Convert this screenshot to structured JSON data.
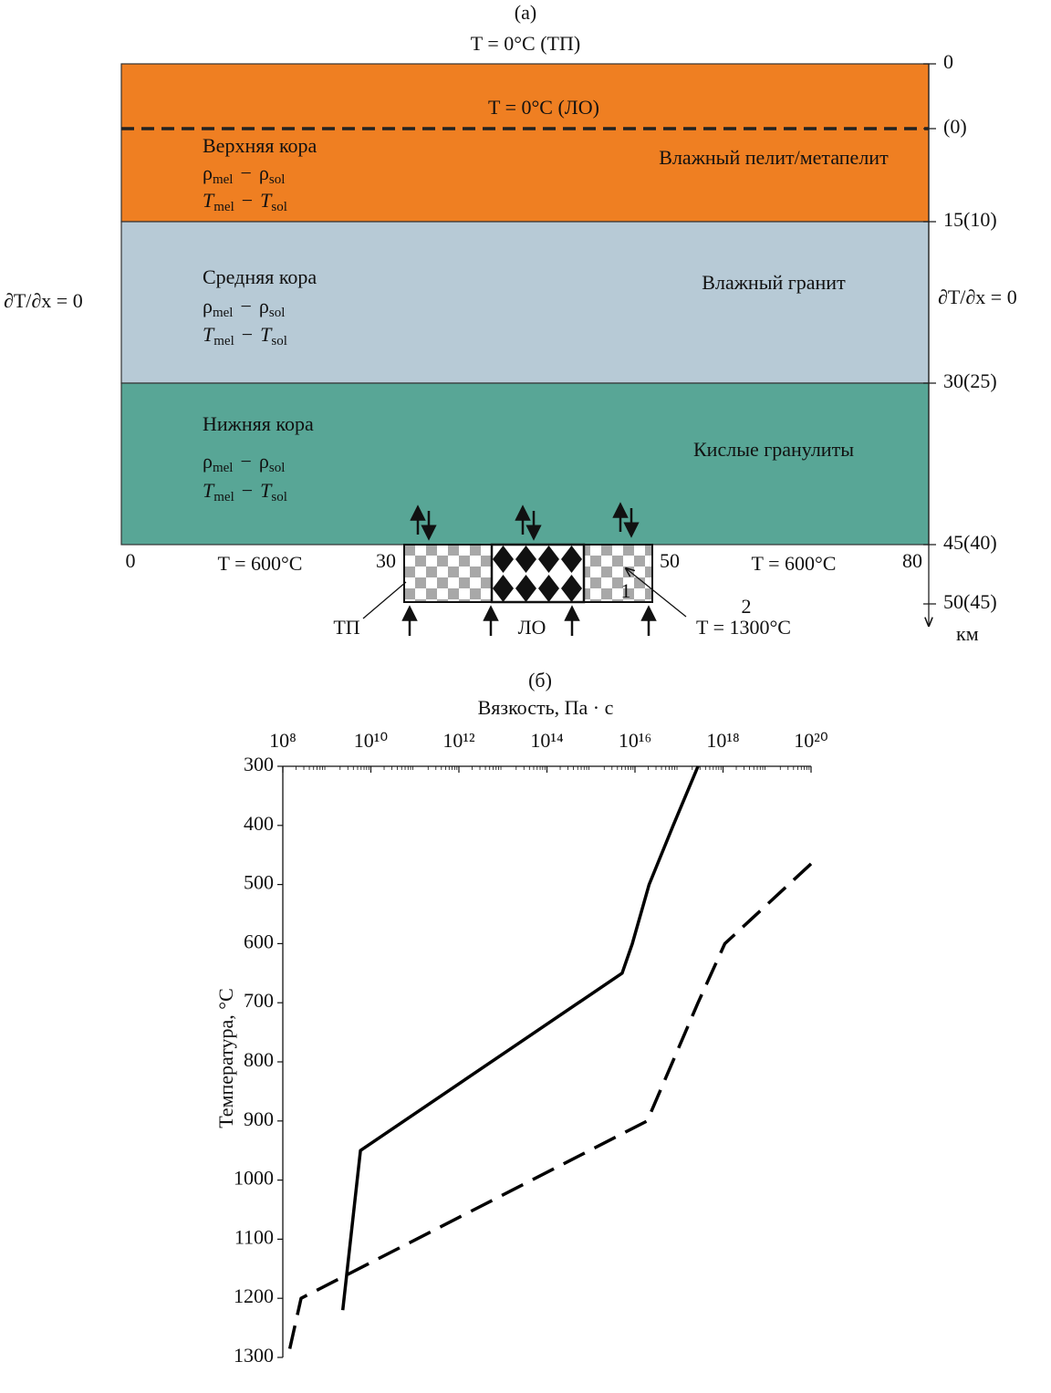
{
  "panel_a": {
    "label": "(а)",
    "top_boundary": "T = 0°C (ТП)",
    "dashed_boundary": "T = 0°C (ЛО)",
    "side_boundary": "∂T/∂x = 0",
    "melt_expressions": [
      {
        "symbol": "ρ",
        "sub1": "mel",
        "op": "−",
        "sub2": "sol"
      },
      {
        "symbol": "T",
        "sub1": "mel",
        "op": "−",
        "sub2": "sol"
      }
    ],
    "layers": [
      {
        "name": "Верхняя кора",
        "material": "Влажный пелит/метапелит",
        "color": "#ef7f22"
      },
      {
        "name": "Средняя кора",
        "material": "Влажный гранит",
        "color": "#b7cad6"
      },
      {
        "name": "Нижняя кора",
        "material": "Кислые гранулиты",
        "color": "#58a696"
      }
    ],
    "depth_ticks": [
      "0",
      "(0)",
      "15(10)",
      "30(25)",
      "45(40)",
      "50(45)"
    ],
    "depth_unit": "км",
    "bottom_labels": {
      "left_edge": "0",
      "left_temp": "T = 600°C",
      "inlet_left": "30",
      "inlet_right": "50",
      "right_temp": "T = 600°C",
      "right_edge": "80"
    },
    "inlet_labels": {
      "tp": "ТП",
      "lo": "ЛО",
      "temp": "T = 1300°C"
    }
  },
  "chart_data": {
    "type": "line",
    "label": "(б)",
    "x_label": "Вязкость, Па · с",
    "y_label": "Температура, °C",
    "xlog": true,
    "minor_ticks": true,
    "y_reversed": true,
    "xlim": [
      100000000.0,
      1e+20
    ],
    "xticks": [
      {
        "value": 100000000.0,
        "label": "10⁸"
      },
      {
        "value": 10000000000.0,
        "label": "10¹⁰"
      },
      {
        "value": 1000000000000.0,
        "label": "10¹²"
      },
      {
        "value": 100000000000000.0,
        "label": "10¹⁴"
      },
      {
        "value": 1e+16,
        "label": "10¹⁶"
      },
      {
        "value": 1e+18,
        "label": "10¹⁸"
      },
      {
        "value": 1e+20,
        "label": "10²⁰"
      }
    ],
    "ylim": [
      300,
      1300
    ],
    "yticks": [
      300,
      400,
      500,
      600,
      700,
      800,
      900,
      1000,
      1100,
      1200,
      1300
    ],
    "series": [
      {
        "name": "1",
        "color": "#000000",
        "dashed": false,
        "x": [
          2.7e+17,
          7.4e+16,
          2.1e+16,
          8700000000000000.0,
          5100000000000000.0,
          5800000000.0,
          2300000000.0
        ],
        "values": [
          300,
          400,
          500,
          600,
          650,
          950,
          1220
        ]
      },
      {
        "name": "2",
        "color": "#000000",
        "dashed": true,
        "x": [
          1e+20,
          1.1e+18,
          2.7e+17,
          1.9e+16,
          260000000.0,
          130000000.0
        ],
        "values": [
          465,
          600,
          700,
          900,
          1200,
          1300
        ]
      }
    ]
  }
}
